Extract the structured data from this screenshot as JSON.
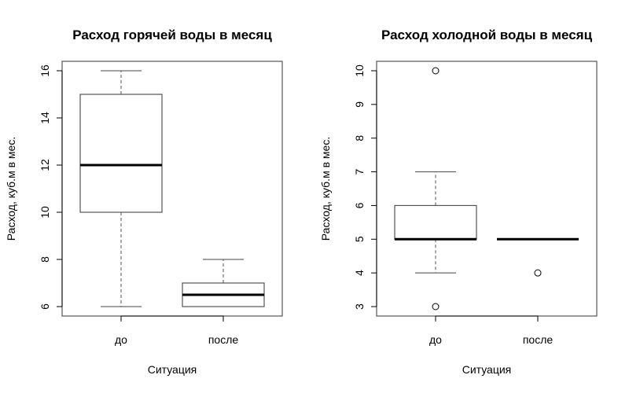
{
  "chart_data": [
    {
      "type": "boxplot",
      "title": "Расход горячей воды в месяц",
      "xlabel": "Ситуация",
      "ylabel": "Расход, куб.м в мес.",
      "ylim": [
        6,
        16
      ],
      "yticks": [
        "6",
        "8",
        "10",
        "12",
        "14",
        "16"
      ],
      "categories": [
        "до",
        "после"
      ],
      "boxes": [
        {
          "whisker_low": 6,
          "q1": 10,
          "median": 12,
          "q3": 15,
          "whisker_high": 16,
          "outliers": []
        },
        {
          "whisker_low": 6,
          "q1": 6,
          "median": 6.5,
          "q3": 7,
          "whisker_high": 8,
          "outliers": []
        }
      ]
    },
    {
      "type": "boxplot",
      "title": "Расход холодной воды в месяц",
      "xlabel": "Ситуация",
      "ylabel": "Расход, куб.м в мес.",
      "ylim": [
        3,
        10
      ],
      "yticks": [
        "3",
        "4",
        "5",
        "6",
        "7",
        "8",
        "9",
        "10"
      ],
      "categories": [
        "до",
        "после"
      ],
      "boxes": [
        {
          "whisker_low": 4,
          "q1": 5,
          "median": 5,
          "q3": 6,
          "whisker_high": 7,
          "outliers": [
            10,
            3
          ]
        },
        {
          "whisker_low": 5,
          "q1": 5,
          "median": 5,
          "q3": 5,
          "whisker_high": 5,
          "outliers": [
            4
          ]
        }
      ]
    }
  ]
}
